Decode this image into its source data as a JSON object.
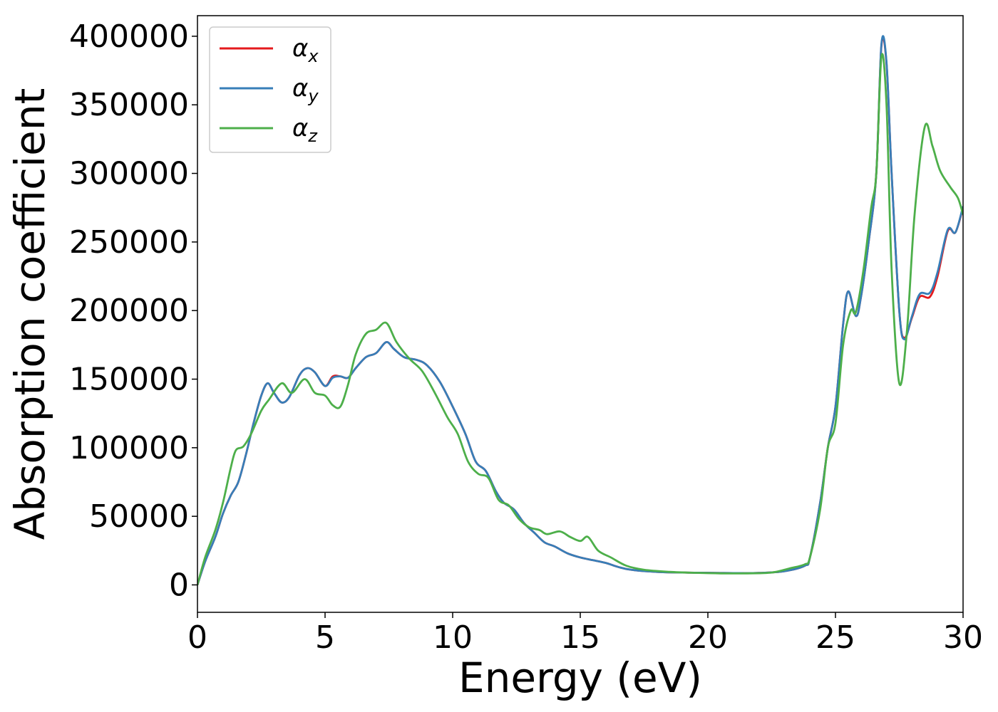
{
  "chart_data": {
    "type": "line",
    "title": "",
    "xlabel": "Energy (eV)",
    "ylabel": "Absorption coefficient",
    "xlim": [
      0,
      30
    ],
    "ylim": [
      -20000,
      415000
    ],
    "xticks": [
      0,
      5,
      10,
      15,
      20,
      25,
      30
    ],
    "xtick_labels": [
      "0",
      "5",
      "10",
      "15",
      "20",
      "25",
      "30"
    ],
    "yticks": [
      0,
      50000,
      100000,
      150000,
      200000,
      250000,
      300000,
      350000,
      400000
    ],
    "ytick_labels": [
      "0",
      "50000",
      "100000",
      "150000",
      "200000",
      "250000",
      "300000",
      "350000",
      "400000"
    ],
    "grid": false,
    "legend_position": "top-left",
    "series": [
      {
        "name": "α",
        "subscript": "x",
        "color": "#e41a1c",
        "points": [
          [
            0,
            0
          ],
          [
            0.3,
            17000
          ],
          [
            0.7,
            35000
          ],
          [
            1.0,
            52000
          ],
          [
            1.3,
            65000
          ],
          [
            1.6,
            75000
          ],
          [
            1.9,
            95000
          ],
          [
            2.2,
            118000
          ],
          [
            2.5,
            138000
          ],
          [
            2.75,
            147000
          ],
          [
            3.0,
            140000
          ],
          [
            3.3,
            133000
          ],
          [
            3.6,
            137000
          ],
          [
            4.0,
            153000
          ],
          [
            4.3,
            158000
          ],
          [
            4.6,
            155000
          ],
          [
            5.0,
            145000
          ],
          [
            5.3,
            152000
          ],
          [
            5.6,
            152000
          ],
          [
            5.9,
            151000
          ],
          [
            6.2,
            158000
          ],
          [
            6.6,
            166000
          ],
          [
            7.0,
            169000
          ],
          [
            7.4,
            177000
          ],
          [
            7.7,
            172000
          ],
          [
            8.1,
            166000
          ],
          [
            8.6,
            164000
          ],
          [
            9.0,
            160000
          ],
          [
            9.5,
            148000
          ],
          [
            10.0,
            130000
          ],
          [
            10.5,
            110000
          ],
          [
            10.9,
            90000
          ],
          [
            11.3,
            83000
          ],
          [
            11.7,
            68000
          ],
          [
            12.0,
            60000
          ],
          [
            12.4,
            55000
          ],
          [
            12.8,
            45000
          ],
          [
            13.2,
            38000
          ],
          [
            13.6,
            31000
          ],
          [
            14.0,
            28000
          ],
          [
            14.5,
            23000
          ],
          [
            15.0,
            20000
          ],
          [
            15.5,
            18000
          ],
          [
            16.0,
            16000
          ],
          [
            16.5,
            13000
          ],
          [
            17.0,
            11000
          ],
          [
            18.0,
            9500
          ],
          [
            19.0,
            9000
          ],
          [
            20.0,
            8800
          ],
          [
            21.0,
            8600
          ],
          [
            22.0,
            8700
          ],
          [
            23.0,
            10000
          ],
          [
            23.8,
            14000
          ],
          [
            24.0,
            20000
          ],
          [
            24.4,
            60000
          ],
          [
            24.7,
            100000
          ],
          [
            25.0,
            130000
          ],
          [
            25.3,
            190000
          ],
          [
            25.5,
            214000
          ],
          [
            25.8,
            196000
          ],
          [
            26.0,
            210000
          ],
          [
            26.3,
            250000
          ],
          [
            26.6,
            300000
          ],
          [
            26.8,
            393000
          ],
          [
            27.0,
            380000
          ],
          [
            27.2,
            300000
          ],
          [
            27.5,
            200000
          ],
          [
            27.7,
            180000
          ],
          [
            28.0,
            195000
          ],
          [
            28.3,
            210000
          ],
          [
            28.7,
            210000
          ],
          [
            29.0,
            225000
          ],
          [
            29.4,
            258000
          ],
          [
            29.7,
            257000
          ],
          [
            30.0,
            275000
          ]
        ]
      },
      {
        "name": "α",
        "subscript": "y",
        "color": "#377eb8",
        "points": [
          [
            0,
            0
          ],
          [
            0.3,
            17000
          ],
          [
            0.7,
            35000
          ],
          [
            1.0,
            52000
          ],
          [
            1.3,
            65000
          ],
          [
            1.6,
            75000
          ],
          [
            1.9,
            95000
          ],
          [
            2.2,
            118000
          ],
          [
            2.5,
            138000
          ],
          [
            2.75,
            147000
          ],
          [
            3.0,
            140000
          ],
          [
            3.3,
            133000
          ],
          [
            3.6,
            137000
          ],
          [
            4.0,
            153000
          ],
          [
            4.3,
            158000
          ],
          [
            4.6,
            155000
          ],
          [
            5.0,
            145000
          ],
          [
            5.3,
            151000
          ],
          [
            5.6,
            152000
          ],
          [
            5.9,
            151000
          ],
          [
            6.2,
            158000
          ],
          [
            6.6,
            166000
          ],
          [
            7.0,
            169000
          ],
          [
            7.4,
            177000
          ],
          [
            7.7,
            172000
          ],
          [
            8.1,
            166000
          ],
          [
            8.6,
            164000
          ],
          [
            9.0,
            160000
          ],
          [
            9.5,
            148000
          ],
          [
            10.0,
            130000
          ],
          [
            10.5,
            110000
          ],
          [
            10.9,
            90000
          ],
          [
            11.3,
            83000
          ],
          [
            11.7,
            68000
          ],
          [
            12.0,
            60000
          ],
          [
            12.4,
            55000
          ],
          [
            12.8,
            45000
          ],
          [
            13.2,
            38000
          ],
          [
            13.6,
            31000
          ],
          [
            14.0,
            28000
          ],
          [
            14.5,
            23000
          ],
          [
            15.0,
            20000
          ],
          [
            15.5,
            18000
          ],
          [
            16.0,
            16000
          ],
          [
            16.5,
            13000
          ],
          [
            17.0,
            11000
          ],
          [
            18.0,
            9500
          ],
          [
            19.0,
            9000
          ],
          [
            20.0,
            8800
          ],
          [
            21.0,
            8600
          ],
          [
            22.0,
            8700
          ],
          [
            23.0,
            10000
          ],
          [
            23.8,
            14000
          ],
          [
            24.0,
            20000
          ],
          [
            24.4,
            60000
          ],
          [
            24.7,
            100000
          ],
          [
            25.0,
            130000
          ],
          [
            25.3,
            190000
          ],
          [
            25.5,
            214000
          ],
          [
            25.8,
            196000
          ],
          [
            26.0,
            210000
          ],
          [
            26.3,
            250000
          ],
          [
            26.6,
            300000
          ],
          [
            26.8,
            394000
          ],
          [
            27.0,
            381000
          ],
          [
            27.2,
            300000
          ],
          [
            27.5,
            200000
          ],
          [
            27.7,
            179000
          ],
          [
            28.0,
            196000
          ],
          [
            28.3,
            212000
          ],
          [
            28.7,
            213000
          ],
          [
            29.0,
            228000
          ],
          [
            29.4,
            259000
          ],
          [
            29.7,
            257000
          ],
          [
            30.0,
            276000
          ]
        ]
      },
      {
        "name": "α",
        "subscript": "z",
        "color": "#4daf4a",
        "points": [
          [
            0,
            0
          ],
          [
            0.3,
            20000
          ],
          [
            0.7,
            40000
          ],
          [
            1.0,
            60000
          ],
          [
            1.3,
            85000
          ],
          [
            1.5,
            98000
          ],
          [
            1.8,
            101000
          ],
          [
            2.1,
            110000
          ],
          [
            2.5,
            127000
          ],
          [
            2.8,
            135000
          ],
          [
            3.3,
            147000
          ],
          [
            3.7,
            140000
          ],
          [
            4.2,
            150000
          ],
          [
            4.6,
            140000
          ],
          [
            5.0,
            138000
          ],
          [
            5.3,
            131000
          ],
          [
            5.6,
            130000
          ],
          [
            5.9,
            146000
          ],
          [
            6.2,
            168000
          ],
          [
            6.6,
            183000
          ],
          [
            7.0,
            186000
          ],
          [
            7.4,
            191000
          ],
          [
            7.8,
            177000
          ],
          [
            8.3,
            165000
          ],
          [
            8.8,
            156000
          ],
          [
            9.3,
            140000
          ],
          [
            9.8,
            122000
          ],
          [
            10.2,
            110000
          ],
          [
            10.6,
            90000
          ],
          [
            11.0,
            81000
          ],
          [
            11.4,
            78000
          ],
          [
            11.8,
            62000
          ],
          [
            12.2,
            58000
          ],
          [
            12.6,
            48000
          ],
          [
            13.0,
            42000
          ],
          [
            13.4,
            40000
          ],
          [
            13.7,
            37000
          ],
          [
            14.2,
            39000
          ],
          [
            14.6,
            35000
          ],
          [
            15.0,
            32000
          ],
          [
            15.3,
            35000
          ],
          [
            15.7,
            25000
          ],
          [
            16.2,
            20000
          ],
          [
            16.8,
            14000
          ],
          [
            17.5,
            11000
          ],
          [
            18.5,
            9500
          ],
          [
            19.5,
            8800
          ],
          [
            20.5,
            8400
          ],
          [
            21.5,
            8400
          ],
          [
            22.5,
            9000
          ],
          [
            23.2,
            12000
          ],
          [
            23.8,
            15000
          ],
          [
            24.0,
            20000
          ],
          [
            24.4,
            55000
          ],
          [
            24.7,
            100000
          ],
          [
            25.0,
            118000
          ],
          [
            25.3,
            175000
          ],
          [
            25.6,
            200000
          ],
          [
            25.8,
            199000
          ],
          [
            26.1,
            230000
          ],
          [
            26.4,
            275000
          ],
          [
            26.6,
            300000
          ],
          [
            26.8,
            385000
          ],
          [
            27.0,
            350000
          ],
          [
            27.2,
            230000
          ],
          [
            27.5,
            147000
          ],
          [
            27.8,
            185000
          ],
          [
            28.1,
            270000
          ],
          [
            28.5,
            334000
          ],
          [
            28.8,
            320000
          ],
          [
            29.1,
            302000
          ],
          [
            29.5,
            290000
          ],
          [
            29.8,
            282000
          ],
          [
            30.0,
            270000
          ]
        ]
      }
    ]
  }
}
